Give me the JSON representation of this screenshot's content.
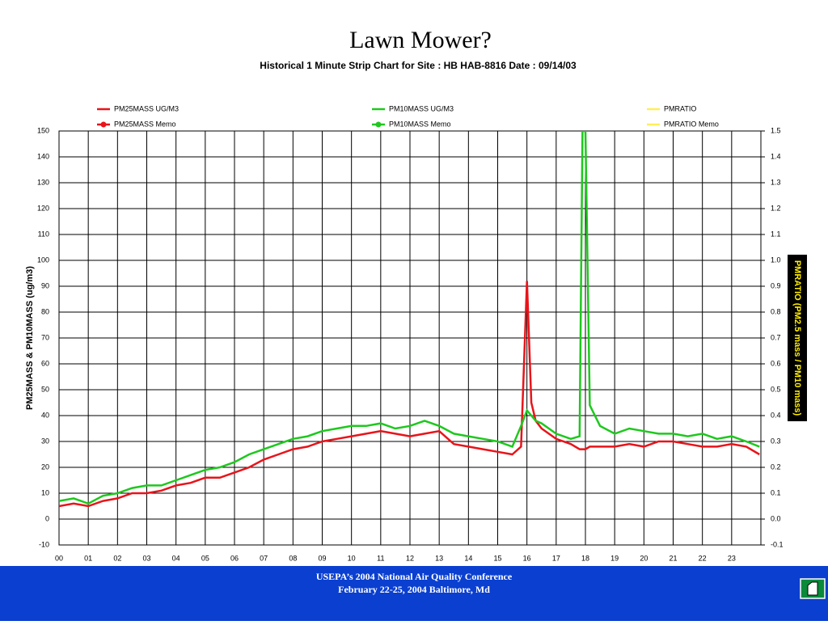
{
  "chart_data": {
    "type": "line",
    "title": "Lawn Mower?",
    "subtitle": "Historical 1 Minute Strip Chart for Site : HB  HAB-8816  Date : 09/14/03",
    "ylabel": "PM25MASS & PM10MASS   (ug/m3)",
    "y2label": "PMRATIO  (PM2.5 mass / PM10 mass)",
    "legend": [
      {
        "label": "PM25MASS   UG/M3",
        "color": "#e8141a",
        "dot": false
      },
      {
        "label": "PM10MASS   UG/M3",
        "color": "#1ec81e",
        "dot": false
      },
      {
        "label": "PMRATIO",
        "color": "#ffee58",
        "dot": false
      },
      {
        "label": "PM25MASS Memo",
        "color": "#e8141a",
        "dot": true
      },
      {
        "label": "PM10MASS Memo",
        "color": "#1ec81e",
        "dot": true
      },
      {
        "label": "PMRATIO  Memo",
        "color": "#ffee58",
        "dot": false
      }
    ],
    "x": [
      0,
      0.5,
      1,
      1.5,
      2,
      2.5,
      3,
      3.5,
      4,
      4.5,
      5,
      5.5,
      6,
      6.5,
      7,
      7.5,
      8,
      8.5,
      9,
      9.5,
      10,
      10.5,
      11,
      11.5,
      12,
      12.5,
      13,
      13.5,
      14,
      14.5,
      15,
      15.5,
      15.8,
      16,
      16.15,
      16.3,
      16.5,
      17,
      17.5,
      17.8,
      17.9,
      18,
      18.15,
      18.5,
      19,
      19.5,
      20,
      20.5,
      21,
      21.5,
      22,
      22.5,
      23,
      23.5,
      23.95
    ],
    "series": [
      {
        "color": "#e8141a",
        "values": [
          5,
          6,
          5,
          7,
          8,
          10,
          10,
          11,
          13,
          14,
          16,
          16,
          18,
          20,
          23,
          25,
          27,
          28,
          30,
          31,
          32,
          33,
          34,
          33,
          32,
          33,
          34,
          29,
          28,
          27,
          26,
          25,
          28,
          92,
          45,
          38,
          35,
          31,
          29,
          27,
          27,
          27,
          28,
          28,
          28,
          29,
          28,
          30,
          30,
          29,
          28,
          28,
          29,
          28,
          25
        ]
      },
      {
        "color": "#1ec81e",
        "values": [
          7,
          8,
          6,
          9,
          10,
          12,
          13,
          13,
          15,
          17,
          19,
          20,
          22,
          25,
          27,
          29,
          31,
          32,
          34,
          35,
          36,
          36,
          37,
          35,
          36,
          38,
          36,
          33,
          32,
          31,
          30,
          28,
          36,
          42,
          40,
          38,
          37,
          33,
          31,
          32,
          150,
          150,
          44,
          36,
          33,
          35,
          34,
          33,
          33,
          32,
          33,
          31,
          32,
          30,
          28
        ]
      }
    ],
    "xlim": [
      0,
      24
    ],
    "xticks": [
      {
        "value": 0,
        "label": "00"
      },
      {
        "value": 1,
        "label": "01"
      },
      {
        "value": 2,
        "label": "02"
      },
      {
        "value": 3,
        "label": "03"
      },
      {
        "value": 4,
        "label": "04"
      },
      {
        "value": 5,
        "label": "05"
      },
      {
        "value": 6,
        "label": "06"
      },
      {
        "value": 7,
        "label": "07"
      },
      {
        "value": 8,
        "label": "08"
      },
      {
        "value": 9,
        "label": "09"
      },
      {
        "value": 10,
        "label": "10"
      },
      {
        "value": 11,
        "label": "11"
      },
      {
        "value": 12,
        "label": "12"
      },
      {
        "value": 13,
        "label": "13"
      },
      {
        "value": 14,
        "label": "14"
      },
      {
        "value": 15,
        "label": "15"
      },
      {
        "value": 16,
        "label": "16"
      },
      {
        "value": 17,
        "label": "17"
      },
      {
        "value": 18,
        "label": "18"
      },
      {
        "value": 19,
        "label": "19"
      },
      {
        "value": 20,
        "label": "20"
      },
      {
        "value": 21,
        "label": "21"
      },
      {
        "value": 22,
        "label": "22"
      },
      {
        "value": 23,
        "label": "23"
      }
    ],
    "ylim": [
      -10,
      150
    ],
    "yticks": [
      -10,
      0,
      10,
      20,
      30,
      40,
      50,
      60,
      70,
      80,
      90,
      100,
      110,
      120,
      130,
      140,
      150
    ],
    "y2lim": [
      -0.1,
      1.5
    ],
    "y2ticks": [
      -0.1,
      {
        "value": 0,
        "label": "0.0"
      },
      0.1,
      0.2,
      0.3,
      0.4,
      0.5,
      0.6,
      0.7,
      0.8,
      0.9,
      {
        "value": 1,
        "label": "1.0"
      },
      1.1,
      1.2,
      1.3,
      1.4,
      1.5
    ],
    "grid": true
  },
  "footer": {
    "line1": "USEPA’s 2004 National Air Quality Conference",
    "line2": "February 22-25, 2004  Baltimore, Md"
  }
}
